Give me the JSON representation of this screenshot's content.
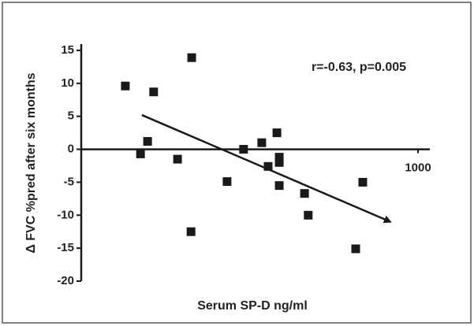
{
  "chart_data": {
    "type": "scatter",
    "xlabel": "Serum SP-D ng/ml",
    "ylabel": "Δ FVC %pred after six months",
    "annotation": "r=-0.63, p=0.005",
    "x": [
      131,
      176,
      197,
      215,
      286,
      328,
      326,
      433,
      482,
      536,
      555,
      581,
      588,
      588,
      588,
      663,
      674,
      815,
      836
    ],
    "y": [
      9.6,
      -0.7,
      1.2,
      8.7,
      -1.5,
      13.9,
      -12.5,
      -4.9,
      0,
      1.0,
      -2.6,
      2.5,
      -1.2,
      -2.0,
      -5.5,
      -6.7,
      -10,
      -15.1,
      -5
    ],
    "color": "#1a1a1a",
    "trend_line": {
      "x": [
        180,
        918
      ],
      "y": [
        5.2,
        -11.0
      ]
    },
    "xlim": [
      0,
      1000
    ],
    "xticks": [
      1000
    ],
    "ylim": [
      -20,
      15
    ],
    "yticks": [
      -20,
      -15,
      -10,
      -5,
      0,
      5,
      10,
      15
    ]
  }
}
